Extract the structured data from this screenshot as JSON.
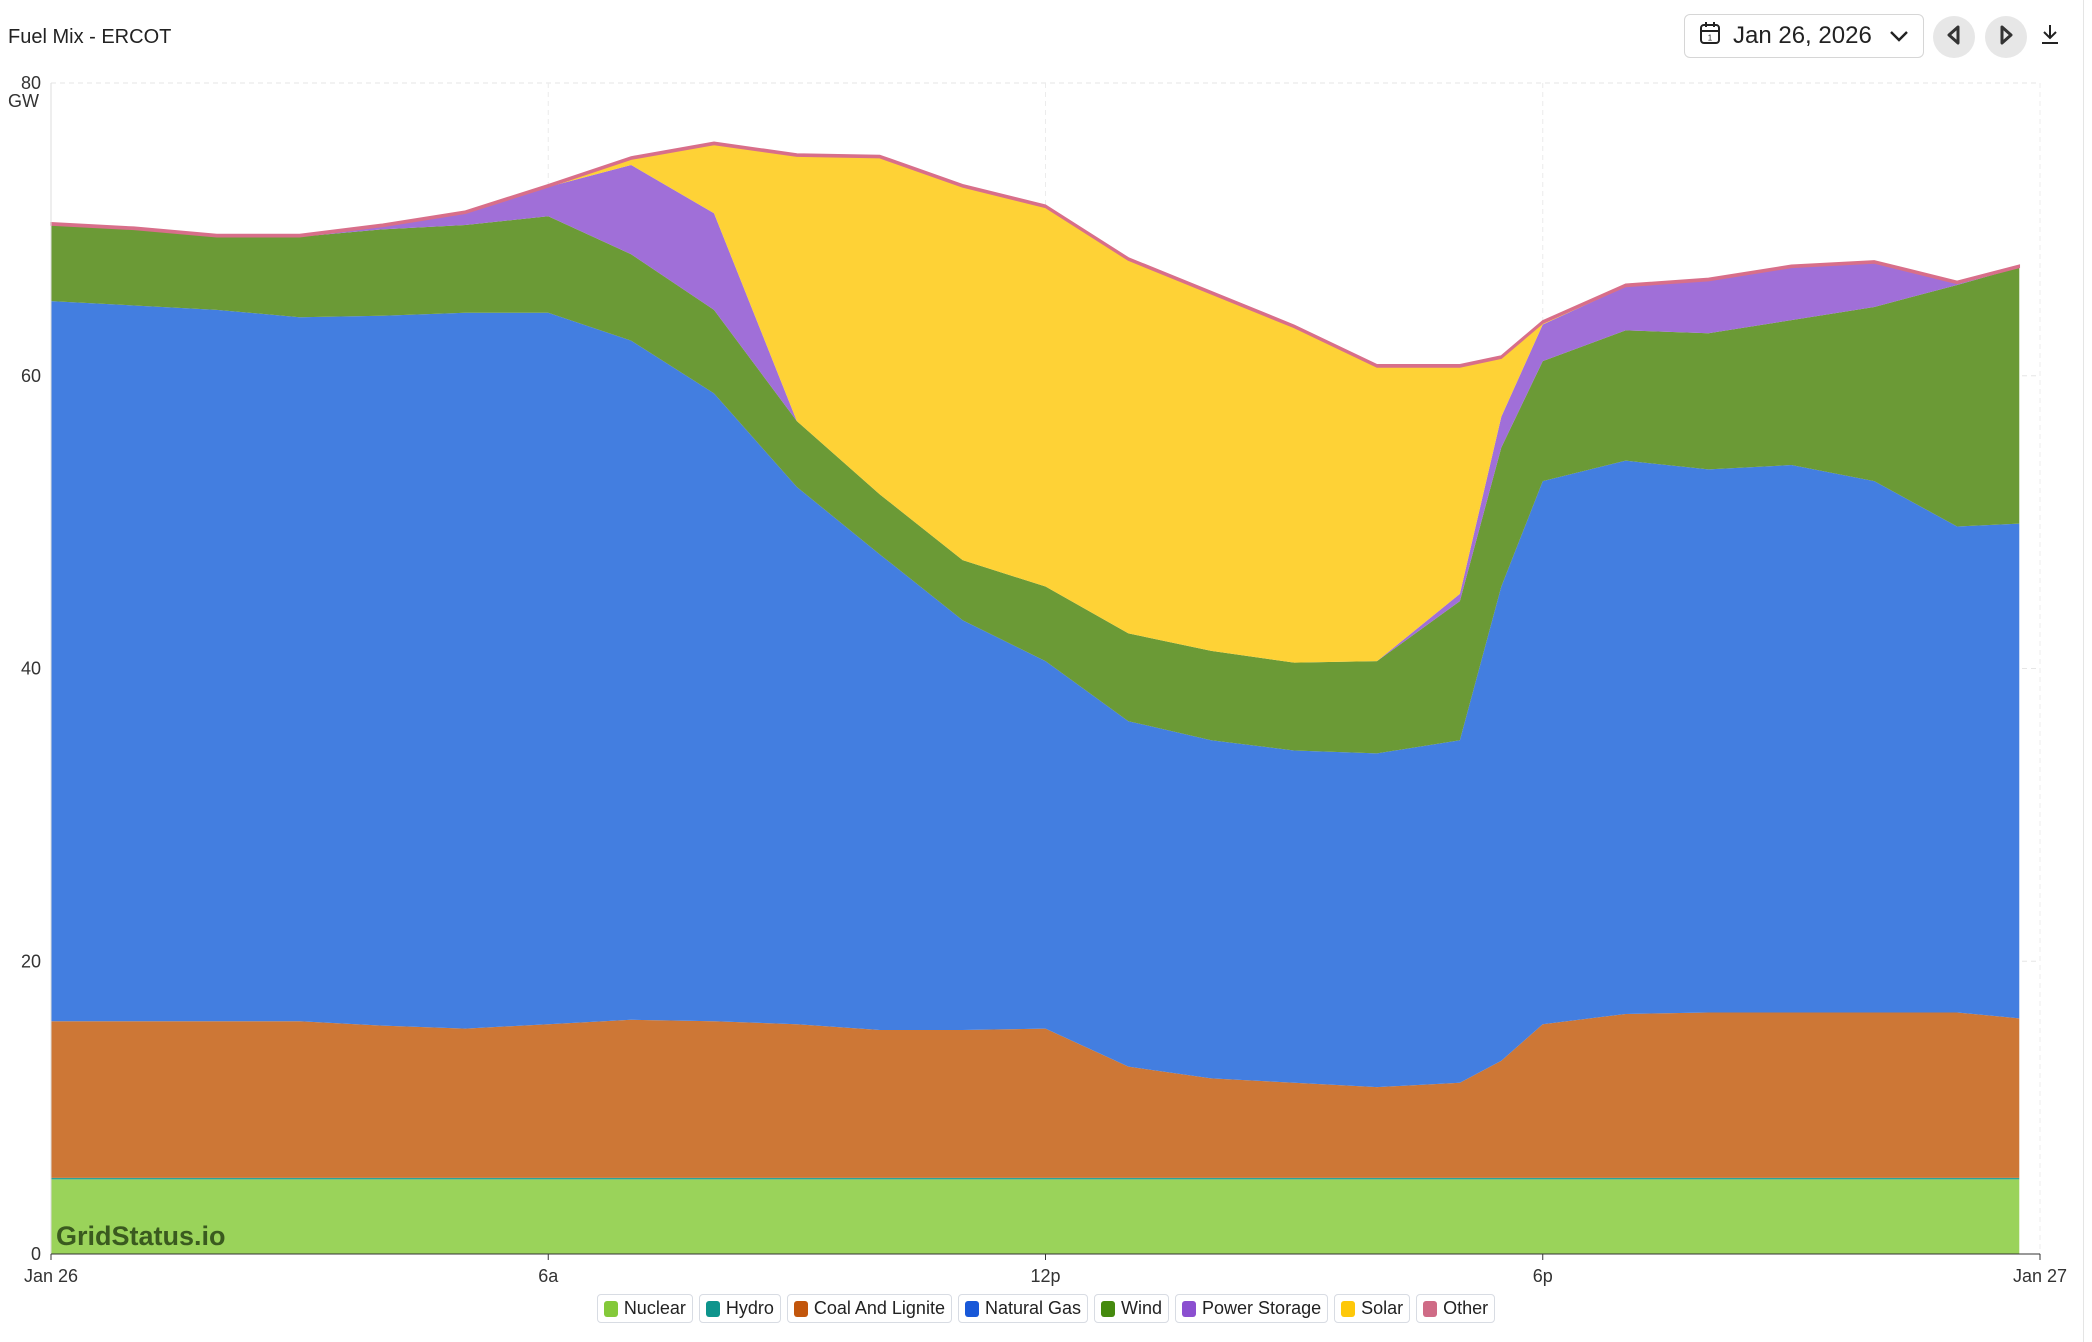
{
  "header": {
    "title": "Fuel Mix - ERCOT",
    "date": "Jan 26, 2026",
    "icons": [
      "calendar-icon",
      "chevron-down-icon",
      "prev-day-icon",
      "next-day-icon",
      "download-icon"
    ]
  },
  "watermark": "GridStatus.io",
  "chart_data": {
    "type": "area",
    "stacked": true,
    "title": "Fuel Mix - ERCOT",
    "ylabel": "GW",
    "ylim": [
      0,
      80
    ],
    "yticks": [
      0,
      20,
      40,
      60,
      80
    ],
    "xlim": [
      0,
      24
    ],
    "xticks": [
      {
        "v": 0,
        "label": "Jan 26"
      },
      {
        "v": 6,
        "label": "6a"
      },
      {
        "v": 12,
        "label": "12p"
      },
      {
        "v": 18,
        "label": "6p"
      },
      {
        "v": 24,
        "label": "Jan 27"
      }
    ],
    "grid": true,
    "legend_position": "bottom",
    "x": [
      0,
      1,
      2,
      3,
      4,
      5,
      6,
      7,
      8,
      9,
      10,
      11,
      12,
      13,
      14,
      15,
      16,
      17,
      17.5,
      18,
      19,
      20,
      21,
      22,
      23,
      23.75
    ],
    "series": [
      {
        "name": "Nuclear",
        "color": "#84c93a",
        "fill": "#9ad35a",
        "values": [
          5.1,
          5.1,
          5.1,
          5.1,
          5.1,
          5.1,
          5.1,
          5.1,
          5.1,
          5.1,
          5.1,
          5.1,
          5.1,
          5.1,
          5.1,
          5.1,
          5.1,
          5.1,
          5.1,
          5.1,
          5.1,
          5.1,
          5.1,
          5.1,
          5.1,
          5.1
        ]
      },
      {
        "name": "Hydro",
        "color": "#0e948c",
        "fill": "#2aa39b",
        "values": [
          0.1,
          0.1,
          0.1,
          0.1,
          0.1,
          0.1,
          0.1,
          0.1,
          0.1,
          0.1,
          0.1,
          0.1,
          0.1,
          0.1,
          0.1,
          0.1,
          0.1,
          0.1,
          0.1,
          0.1,
          0.1,
          0.1,
          0.1,
          0.1,
          0.1,
          0.1
        ]
      },
      {
        "name": "Coal And Lignite",
        "color": "#c2560c",
        "fill": "#cd7736",
        "values": [
          10.7,
          10.7,
          10.7,
          10.7,
          10.4,
          10.2,
          10.5,
          10.8,
          10.7,
          10.5,
          10.1,
          10.1,
          10.2,
          7.6,
          6.8,
          6.5,
          6.2,
          6.5,
          8.0,
          10.5,
          11.2,
          11.3,
          11.3,
          11.3,
          11.3,
          10.9
        ]
      },
      {
        "name": "Natural Gas",
        "color": "#1858d8",
        "fill": "#437ee0",
        "values": [
          49.2,
          48.9,
          48.6,
          48.1,
          48.5,
          48.9,
          48.6,
          46.4,
          42.9,
          36.7,
          32.5,
          28.0,
          25.1,
          23.6,
          23.1,
          22.7,
          22.8,
          23.4,
          32.4,
          37.1,
          37.8,
          37.1,
          37.4,
          36.3,
          33.2,
          33.8
        ]
      },
      {
        "name": "Wind",
        "color": "#458a0e",
        "fill": "#6b9a36",
        "values": [
          5.2,
          5.2,
          5.0,
          5.5,
          5.9,
          6.0,
          6.6,
          5.9,
          5.7,
          4.5,
          4.1,
          4.1,
          5.1,
          6.0,
          6.1,
          6.0,
          6.3,
          9.5,
          9.5,
          8.2,
          8.9,
          9.3,
          9.9,
          11.9,
          16.5,
          17.5
        ]
      },
      {
        "name": "Power Storage",
        "color": "#8b4fd0",
        "fill": "#a06fd8",
        "values": [
          0,
          0,
          0,
          0,
          0.2,
          0.8,
          2.0,
          6.1,
          6.6,
          0,
          0,
          0,
          0,
          0,
          0,
          0,
          0,
          0.5,
          2.1,
          2.5,
          3.0,
          3.6,
          3.6,
          3.0,
          0.1,
          0
        ]
      },
      {
        "name": "Solar",
        "color": "#fec80a",
        "fill": "#fed236",
        "values": [
          0,
          0,
          0,
          0,
          0,
          0,
          0,
          0.4,
          4.7,
          18.1,
          23.0,
          25.5,
          25.9,
          25.5,
          24.4,
          22.9,
          20.1,
          15.5,
          4.0,
          0.1,
          0,
          0,
          0,
          0,
          0,
          0
        ]
      },
      {
        "name": "Other",
        "color": "#cf6b86",
        "fill": "#d86f8a",
        "values": [
          0.15,
          0.15,
          0.15,
          0.15,
          0.15,
          0.15,
          0.15,
          0.15,
          0.15,
          0.15,
          0.15,
          0.15,
          0.15,
          0.15,
          0.15,
          0.15,
          0.15,
          0.15,
          0.15,
          0.15,
          0.15,
          0.15,
          0.15,
          0.15,
          0.15,
          0.15
        ]
      }
    ]
  }
}
